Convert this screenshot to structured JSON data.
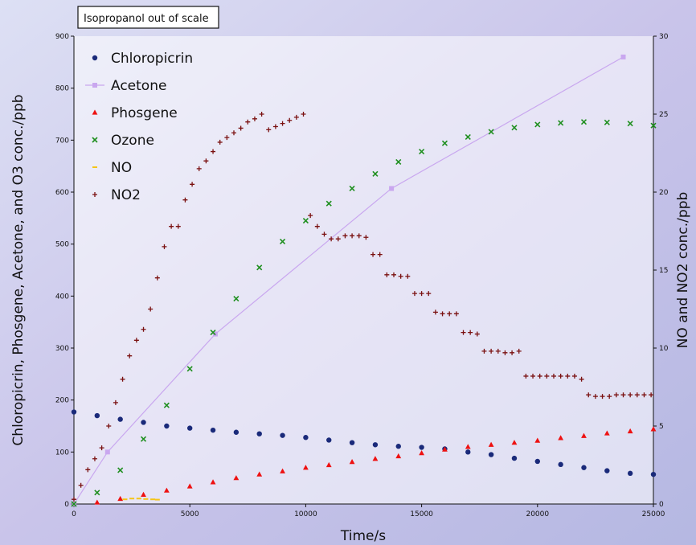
{
  "chart_data": {
    "type": "scatter",
    "annotation": "Isopropanol out of scale",
    "xlabel": "Time/s",
    "ylabel_left": "Chloropicrin, Phosgene, Acetone, and O3 conc./ppb",
    "ylabel_right": "NO and NO2 conc./ppb",
    "xlim": [
      0,
      25000
    ],
    "ylim_left": [
      0,
      900
    ],
    "ylim_right": [
      0,
      30
    ],
    "x_ticks": [
      0,
      5000,
      10000,
      15000,
      20000,
      25000
    ],
    "y_left_ticks": [
      0,
      100,
      200,
      300,
      400,
      500,
      600,
      700,
      800,
      900
    ],
    "y_right_ticks": [
      0,
      5,
      10,
      15,
      20,
      25,
      30
    ],
    "legend_position": "top-left",
    "series": [
      {
        "name": "Chloropicrin",
        "axis": "left",
        "marker": "circle",
        "color": "#1a2a7a",
        "x": [
          0,
          1000,
          2000,
          3000,
          4000,
          5000,
          6000,
          7000,
          8000,
          9000,
          10000,
          11000,
          12000,
          13000,
          14000,
          15000,
          16000,
          17000,
          18000,
          19000,
          20000,
          21000,
          22000,
          23000,
          24000,
          25000
        ],
        "y": [
          177,
          170,
          163,
          157,
          150,
          146,
          142,
          138,
          135,
          132,
          128,
          123,
          118,
          114,
          111,
          109,
          106,
          100,
          95,
          88,
          82,
          76,
          70,
          64,
          59,
          57
        ]
      },
      {
        "name": "Acetone",
        "axis": "left",
        "marker": "square",
        "color": "#c9a7ef",
        "line": true,
        "x": [
          0,
          1450,
          6100,
          13700,
          23700
        ],
        "y": [
          0,
          100,
          327,
          607,
          860
        ]
      },
      {
        "name": "Phosgene",
        "axis": "left",
        "marker": "triangle",
        "color": "#ee1111",
        "x": [
          1000,
          2000,
          3000,
          4000,
          5000,
          6000,
          7000,
          8000,
          9000,
          10000,
          11000,
          12000,
          13000,
          14000,
          15000,
          16000,
          17000,
          18000,
          19000,
          20000,
          21000,
          22000,
          23000,
          24000,
          25000
        ],
        "y": [
          3,
          10,
          18,
          26,
          34,
          42,
          50,
          57,
          63,
          70,
          75,
          81,
          87,
          92,
          98,
          105,
          110,
          114,
          118,
          122,
          127,
          131,
          136,
          140,
          144
        ]
      },
      {
        "name": "Ozone",
        "axis": "left",
        "marker": "x",
        "color": "#1f8f1f",
        "x": [
          0,
          1000,
          2000,
          3000,
          4000,
          5000,
          6000,
          7000,
          8000,
          9000,
          10000,
          11000,
          12000,
          13000,
          14000,
          15000,
          16000,
          17000,
          18000,
          19000,
          20000,
          21000,
          22000,
          23000,
          24000,
          25000
        ],
        "y": [
          0,
          22,
          65,
          125,
          190,
          260,
          330,
          395,
          455,
          505,
          545,
          578,
          607,
          635,
          658,
          678,
          694,
          706,
          716,
          724,
          730,
          733,
          735,
          734,
          732,
          728
        ]
      },
      {
        "name": "NO",
        "axis": "right",
        "marker": "dash",
        "color": "#f5c518",
        "x": [
          2200,
          2500,
          2800,
          3100,
          3400,
          3600
        ],
        "y": [
          0.3,
          0.35,
          0.35,
          0.32,
          0.3,
          0.28
        ]
      },
      {
        "name": "NO2",
        "axis": "right",
        "marker": "plus",
        "color": "#7a1010",
        "x": [
          0,
          300,
          600,
          900,
          1200,
          1500,
          1800,
          2100,
          2400,
          2700,
          3000,
          3300,
          3600,
          3900,
          4200,
          4500,
          4800,
          5100,
          5400,
          5700,
          6000,
          6300,
          6600,
          6900,
          7200,
          7500,
          7800,
          8100,
          8400,
          8700,
          9000,
          9300,
          9600,
          9900,
          10200,
          10500,
          10800,
          11100,
          11400,
          11700,
          12000,
          12300,
          12600,
          12900,
          13200,
          13500,
          13800,
          14100,
          14400,
          14700,
          15000,
          15300,
          15600,
          15900,
          16200,
          16500,
          16800,
          17100,
          17400,
          17700,
          18000,
          18300,
          18600,
          18900,
          19200,
          19500,
          19800,
          20100,
          20400,
          20700,
          21000,
          21300,
          21600,
          21900,
          22200,
          22500,
          22800,
          23100,
          23400,
          23700,
          24000,
          24300,
          24600,
          24900
        ],
        "y": [
          0.3,
          1.2,
          2.2,
          2.9,
          3.6,
          5.0,
          6.5,
          8.0,
          9.5,
          10.5,
          11.2,
          12.5,
          14.5,
          16.5,
          17.8,
          17.8,
          19.5,
          20.5,
          21.5,
          22.0,
          22.6,
          23.2,
          23.5,
          23.8,
          24.1,
          24.5,
          24.7,
          25.0,
          24.0,
          24.2,
          24.4,
          24.6,
          24.8,
          25.0,
          18.5,
          17.8,
          17.3,
          17.0,
          17.0,
          17.2,
          17.2,
          17.2,
          17.1,
          16.0,
          16.0,
          14.7,
          14.7,
          14.6,
          14.6,
          13.5,
          13.5,
          13.5,
          12.3,
          12.2,
          12.2,
          12.2,
          11.0,
          11.0,
          10.9,
          9.8,
          9.8,
          9.8,
          9.7,
          9.7,
          9.8,
          8.2,
          8.2,
          8.2,
          8.2,
          8.2,
          8.2,
          8.2,
          8.2,
          8.0,
          7.0,
          6.9,
          6.9,
          6.9,
          7.0,
          7.0,
          7.0,
          7.0,
          7.0,
          7.0
        ]
      }
    ]
  }
}
